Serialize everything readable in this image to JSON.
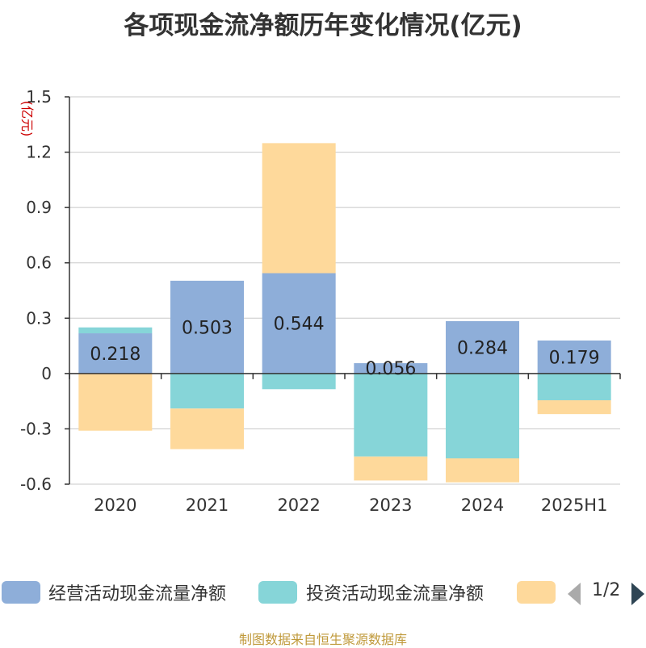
{
  "title": "各项现金流净额历年变化情况(亿元)",
  "source": "制图数据来自恒生聚源数据库",
  "legend": {
    "pager": "1/2"
  },
  "chart_data": {
    "type": "bar",
    "stacked": true,
    "unit_label": "(亿元)",
    "categories": [
      "2020",
      "2021",
      "2022",
      "2023",
      "2024",
      "2025H1"
    ],
    "yticks": [
      "1.5",
      "1.2",
      "0.9",
      "0.6",
      "0.3",
      "0",
      "-0.3",
      "-0.6"
    ],
    "ylim": [
      -0.6,
      1.5
    ],
    "grid": true,
    "legend_position": "bottom",
    "series": [
      {
        "name": "经营活动现金流量净额",
        "color": "#8eaed9",
        "values": [
          0.218,
          0.503,
          0.544,
          0.056,
          0.284,
          0.179
        ],
        "labels": [
          "0.218",
          "0.503",
          "0.544",
          "0.056",
          "0.284",
          "0.179"
        ]
      },
      {
        "name": "投资活动现金流量净额",
        "color": "#86d5d8",
        "values": [
          0.032,
          -0.19,
          -0.085,
          -0.45,
          -0.46,
          -0.145
        ]
      },
      {
        "color": "#fed99b",
        "values": [
          -0.31,
          -0.22,
          0.705,
          -0.13,
          -0.13,
          -0.075
        ]
      }
    ]
  }
}
